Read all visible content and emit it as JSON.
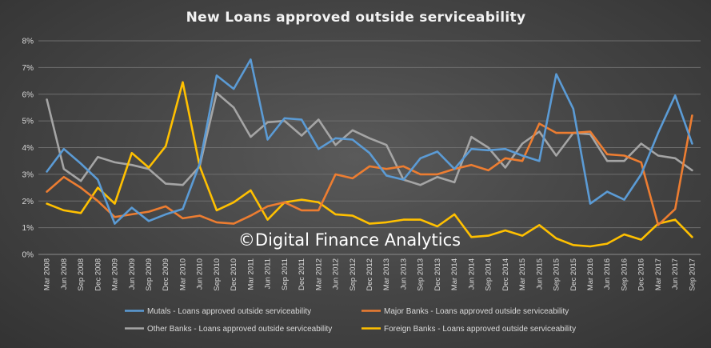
{
  "chart_data": {
    "type": "line",
    "title": "New Loans approved outside serviceability",
    "xlabel": "",
    "ylabel": "",
    "ylim": [
      0,
      8
    ],
    "yticks": [
      "0%",
      "1%",
      "2%",
      "3%",
      "4%",
      "5%",
      "6%",
      "7%",
      "8%"
    ],
    "grid": true,
    "legend_position": "bottom",
    "watermark": "©Digital Finance Analytics",
    "categories": [
      "Mar 2008",
      "Jun 2008",
      "Sep 2008",
      "Dec 2008",
      "Mar 2009",
      "Jun 2009",
      "Sep 2009",
      "Dec 2009",
      "Mar 2010",
      "Jun 2010",
      "Sep 2010",
      "Dec 2010",
      "Mar 2011",
      "Jun 2011",
      "Sep 2011",
      "Dec 2011",
      "Mar 2012",
      "Jun 2012",
      "Sep 2012",
      "Dec 2012",
      "Mar 2013",
      "Jun 2013",
      "Sep 2013",
      "Dec 2013",
      "Mar 2014",
      "Jun 2014",
      "Sep 2014",
      "Dec 2014",
      "Mar 2015",
      "Jun 2015",
      "Sep 2015",
      "Dec 2015",
      "Mar 2016",
      "Jun 2016",
      "Sep 2016",
      "Dec 2016",
      "Mar 2017",
      "Jun 2017",
      "Sep 2017"
    ],
    "series": [
      {
        "name": "Mutals - Loans approved outside serviceability",
        "color": "#5b9bd5",
        "values": [
          3.1,
          3.95,
          3.4,
          2.8,
          1.15,
          1.75,
          1.25,
          1.5,
          1.7,
          3.4,
          6.7,
          6.2,
          7.3,
          4.3,
          5.1,
          5.05,
          3.95,
          4.35,
          4.3,
          3.8,
          2.95,
          2.8,
          3.6,
          3.85,
          3.2,
          3.95,
          3.9,
          3.95,
          3.7,
          3.5,
          6.75,
          5.45,
          1.9,
          2.35,
          2.05,
          3.0,
          4.55,
          5.95,
          4.15
        ]
      },
      {
        "name": "Major Banks - Loans approved outside serviceability",
        "color": "#ed7d31",
        "values": [
          2.35,
          2.9,
          2.5,
          2.0,
          1.4,
          1.5,
          1.6,
          1.8,
          1.35,
          1.45,
          1.2,
          1.15,
          1.45,
          1.8,
          1.95,
          1.65,
          1.65,
          3.0,
          2.85,
          3.3,
          3.2,
          3.3,
          3.0,
          3.0,
          3.2,
          3.35,
          3.15,
          3.6,
          3.5,
          4.9,
          4.55,
          4.55,
          4.6,
          3.75,
          3.7,
          3.45,
          1.1,
          1.7,
          5.2
        ]
      },
      {
        "name": "Other Banks - Loans approved outside serviceability",
        "color": "#a5a5a5",
        "values": [
          5.8,
          3.2,
          2.75,
          3.65,
          3.45,
          3.35,
          3.2,
          2.65,
          2.6,
          3.3,
          6.05,
          5.5,
          4.4,
          4.95,
          5.0,
          4.45,
          5.05,
          4.1,
          4.65,
          4.35,
          4.1,
          2.8,
          2.6,
          2.9,
          2.7,
          4.4,
          4.0,
          3.25,
          4.15,
          4.6,
          3.7,
          4.55,
          4.5,
          3.5,
          3.5,
          4.15,
          3.7,
          3.6,
          3.15
        ]
      },
      {
        "name": "Foreign Banks - Loans approved outside serviceability",
        "color": "#ffc000",
        "values": [
          1.9,
          1.65,
          1.55,
          2.5,
          1.9,
          3.8,
          3.25,
          4.05,
          6.45,
          3.3,
          1.65,
          1.95,
          2.4,
          1.3,
          1.95,
          2.05,
          1.95,
          1.5,
          1.45,
          1.15,
          1.2,
          1.3,
          1.3,
          1.05,
          1.5,
          0.65,
          0.7,
          0.9,
          0.7,
          1.1,
          0.6,
          0.35,
          0.3,
          0.4,
          0.75,
          0.55,
          1.15,
          1.3,
          0.65
        ]
      }
    ]
  }
}
